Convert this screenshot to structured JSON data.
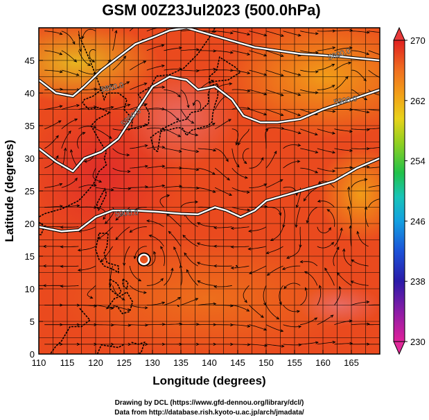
{
  "title": "GSM 00Z23Jul2023 (500.0hPa)",
  "map": {
    "xlabel": "Longitude (degrees)",
    "ylabel": "Latitude  (degrees)",
    "xlim": [
      110,
      170
    ],
    "ylim": [
      0,
      50
    ],
    "xticks": [
      "110",
      "115",
      "120",
      "125",
      "130",
      "135",
      "140",
      "145",
      "150",
      "155",
      "160",
      "165"
    ],
    "yticks": [
      "0",
      "5",
      "10",
      "15",
      "20",
      "25",
      "30",
      "35",
      "40",
      "45"
    ],
    "grid": true,
    "contours": [
      {
        "label": "5800.0"
      },
      {
        "label": "5850.0"
      },
      {
        "label": "5850.0"
      },
      {
        "label": "5900.0"
      },
      {
        "label": "5900.0"
      }
    ],
    "typhoon_center": {
      "lon": 128.5,
      "lat": 14.5
    }
  },
  "colorbar": {
    "ticks": [
      "270",
      "262",
      "254",
      "246",
      "238",
      "230"
    ],
    "range": [
      230,
      270
    ],
    "colors": [
      "#e0209a",
      "#8a1ca6",
      "#2a1aa8",
      "#1c52d8",
      "#14a0e0",
      "#18c4b8",
      "#22c24a",
      "#92d020",
      "#e8d21a",
      "#f2a018",
      "#f07020",
      "#e83020",
      "#e02020"
    ]
  },
  "credits": {
    "line1": "Drawing by DCL (https://www.gfd-dennou.org/library/dcl/)",
    "line2": "Data from http://database.rish.kyoto-u.ac.jp/arch/jmadata/"
  }
}
